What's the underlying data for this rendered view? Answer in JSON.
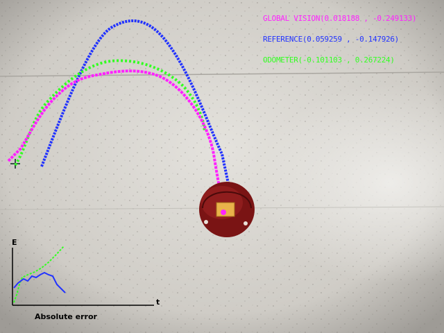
{
  "colors": {
    "global_vision": "#ff22ff",
    "reference": "#2233ff",
    "odometer": "#33ff22",
    "floor": "#c9c7c2",
    "robot": "#7a1414"
  },
  "hud": {
    "global_vision": "GLOBAL VISION(0.018188 , -0.249133)",
    "reference": "REFERENCE(0.059259 , -0.147926)",
    "odometer": "ODOMETER(-0.101103 , 0.267224)"
  },
  "error_plot": {
    "y_label": "E",
    "x_label": "t",
    "caption": "Absolute error"
  },
  "icons": {
    "start_marker": "crosshair-icon",
    "robot": "robot-icon"
  }
}
